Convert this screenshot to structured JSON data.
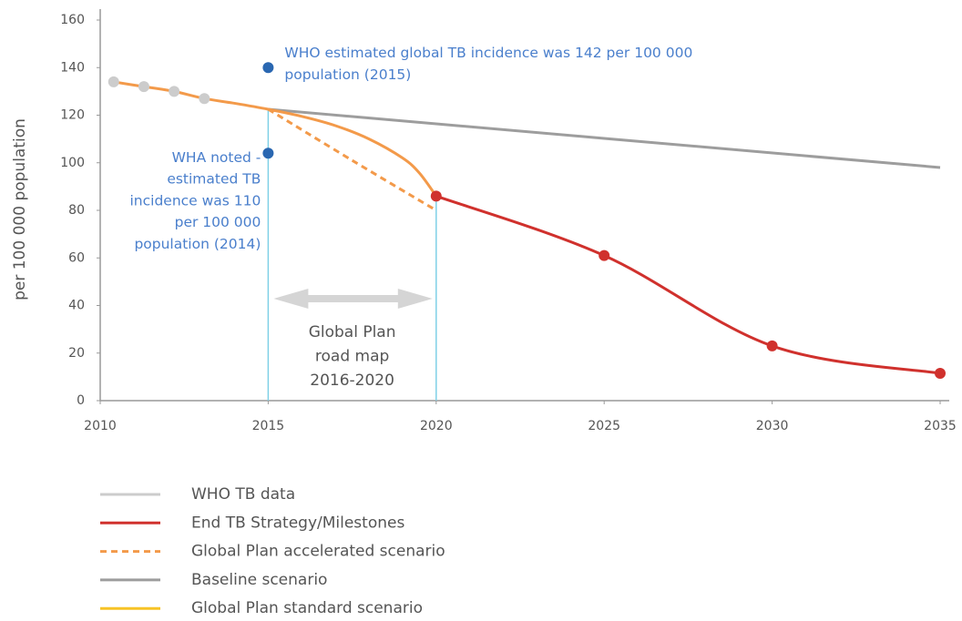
{
  "chart_data": {
    "type": "line",
    "y_label": "per 100 000 population",
    "xlim": [
      2010,
      2035
    ],
    "xticks": [
      2010,
      2015,
      2020,
      2025,
      2030,
      2035
    ],
    "ylim": [
      0,
      160
    ],
    "yticks": [
      0,
      20,
      40,
      60,
      80,
      100,
      120,
      140,
      160
    ],
    "series": [
      {
        "name": "WHO TB data",
        "color": "#cccccc",
        "line": false,
        "markers": true,
        "x": [
          2010.4,
          2011.3,
          2012.2,
          2013.1
        ],
        "values": [
          134,
          132,
          130,
          127
        ]
      },
      {
        "name": "End TB Strategy/Milestones",
        "color": "#d0312d",
        "line": true,
        "markers": true,
        "x": [
          2020,
          2025,
          2030,
          2035
        ],
        "values": [
          86,
          61,
          23,
          11.5
        ]
      },
      {
        "name": "Global Plan accelerated scenario",
        "color": "#f39a4a",
        "line": true,
        "dashed": true,
        "markers": false,
        "x": [
          2015,
          2017.5,
          2020
        ],
        "values": [
          122.5,
          101,
          80
        ]
      },
      {
        "name": "Baseline scenario",
        "color": "#9d9d9d",
        "line": true,
        "markers": false,
        "x": [
          2015,
          2035
        ],
        "values": [
          122.5,
          98
        ]
      },
      {
        "name": "Global Plan standard scenario",
        "color": "#f39a4a",
        "legend_color": "#f7c325",
        "line": true,
        "markers": false,
        "x": [
          2010.4,
          2011.3,
          2012.2,
          2013.1,
          2014,
          2015,
          2016,
          2017,
          2018,
          2019,
          2019.5,
          2020
        ],
        "values": [
          134,
          132,
          130,
          127,
          125,
          122.5,
          119.5,
          115.6,
          110,
          102,
          95.7,
          86
        ]
      }
    ],
    "annotations": [
      {
        "x": 2015,
        "y": 140,
        "color": "#2a67b1",
        "align": "left",
        "lines": [
          "WHO estimated global TB incidence was 142 per 100 000",
          "population (2015)"
        ]
      },
      {
        "x": 2015,
        "y": 104,
        "color": "#2a67b1",
        "align": "right",
        "lines": [
          "WHA noted -",
          "estimated TB",
          "incidence was 110",
          "per 100 000",
          "population (2014)"
        ]
      }
    ],
    "period": {
      "x": [
        2015,
        2020
      ],
      "color": "#7fd0e6",
      "lines": [
        "Global Plan",
        "road map",
        "2016-2020"
      ]
    }
  }
}
